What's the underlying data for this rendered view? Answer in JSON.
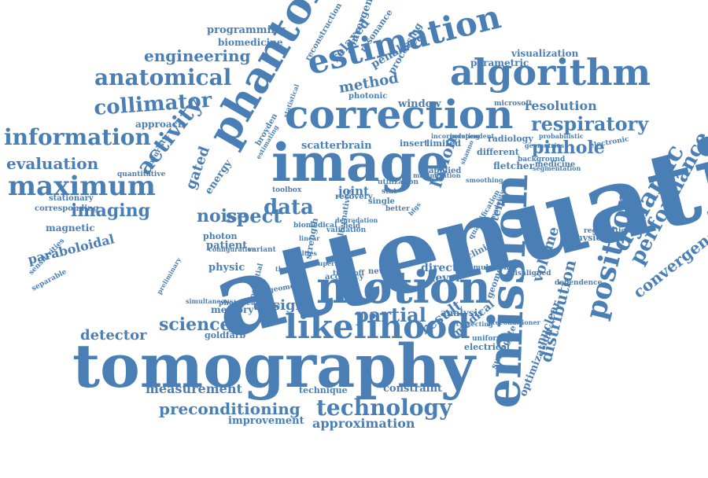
{
  "colors": {
    "word": "#4a7fb5",
    "background": "#ffffff"
  },
  "words": [
    "attenuation",
    "tomography",
    "emission",
    "image",
    "phantom",
    "correction",
    "estimation",
    "algorithm",
    "motion",
    "likelihood",
    "positron",
    "technology",
    "maximum",
    "information",
    "anatomical",
    "collimator",
    "respiratory",
    "dynamic",
    "performance",
    "convergence",
    "activity",
    "science",
    "data",
    "evaluation",
    "engineering",
    "imaging",
    "spect",
    "pinhole",
    "preconditioning",
    "partial",
    "detector",
    "measurement",
    "approximation",
    "method",
    "volume",
    "distribution",
    "noise",
    "design",
    "result",
    "resolution",
    "gated",
    "paraboloidal",
    "lesion",
    "medical",
    "improvement",
    "programming",
    "biomedicine",
    "relaxed",
    "convergent",
    "penalized",
    "processing",
    "parametric",
    "visualization",
    "reconstruction",
    "resonance",
    "window",
    "approach",
    "scatterbrain",
    "fletcher",
    "radiology",
    "magnetic",
    "joint",
    "insert",
    "direct",
    "level",
    "system",
    "patient",
    "constraint",
    "technique",
    "physic",
    "memory",
    "analysis",
    "nuclear",
    "optimization",
    "surrogate",
    "electrical",
    "clinical",
    "geometry",
    "medicine",
    "microsoft",
    "electronic",
    "registration",
    "physical",
    "energy",
    "photon",
    "different",
    "limited",
    "applied",
    "stationary",
    "corresponding",
    "quantitative",
    "heuristic",
    "separable",
    "sensitivities",
    "goldfarb",
    "potential",
    "accuracy",
    "newton",
    "geometric",
    "photopeak",
    "strength",
    "recovery",
    "single",
    "toolbox",
    "field",
    "better",
    "photonic",
    "broyden",
    "uniformity",
    "misaligned",
    "preconditioner",
    "simulation",
    "utilization",
    "variant",
    "penalty",
    "probabilistic",
    "geometries",
    "incorporating",
    "independent",
    "background",
    "segmentation",
    "dependence",
    "quantification",
    "modality",
    "estimating",
    "validation",
    "bfgs",
    "smoothing",
    "shanno",
    "statistical",
    "maximization",
    "correcting",
    "simultaneous",
    "configuration",
    "preliminary",
    "degradation",
    "penalties",
    "alternatives",
    "linear",
    "theory",
    "biomedical",
    "superior",
    "tradeoff",
    "stat",
    "pet"
  ]
}
